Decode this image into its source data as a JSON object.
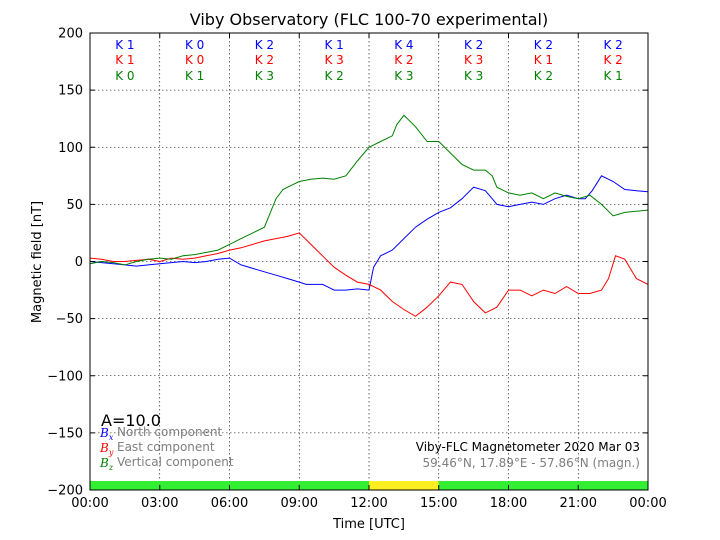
{
  "chart_data": {
    "type": "line",
    "title": "Viby Observatory (FLC 100-70 experimental)",
    "xlabel": "Time [UTC]",
    "ylabel": "Magnetic field [nT]",
    "xlim": [
      0,
      24
    ],
    "ylim": [
      -200,
      200
    ],
    "x_ticks": [
      0,
      3,
      6,
      9,
      12,
      15,
      18,
      21,
      24
    ],
    "x_tick_labels": [
      "00:00",
      "03:00",
      "06:00",
      "09:00",
      "12:00",
      "15:00",
      "18:00",
      "21:00",
      "00:00"
    ],
    "y_ticks": [
      200,
      150,
      100,
      50,
      0,
      -50,
      -100,
      -150,
      -200
    ],
    "y_tick_labels": [
      "200",
      "150",
      "100",
      "50",
      "0",
      "−50",
      "−100",
      "−150",
      "−200"
    ],
    "grid": true,
    "activity_index": "A=10.0",
    "k_indices": [
      {
        "name": "K",
        "color": "#0000ff",
        "values": [
          "K 1",
          "K 0",
          "K 2",
          "K 1",
          "K 4",
          "K 2",
          "K 2",
          "K 2"
        ]
      },
      {
        "name": "K",
        "color": "#ff0000",
        "values": [
          "K 1",
          "K 0",
          "K 2",
          "K 3",
          "K 2",
          "K 3",
          "K 1",
          "K 2"
        ]
      },
      {
        "name": "K",
        "color": "#008000",
        "values": [
          "K 0",
          "K 1",
          "K 3",
          "K 2",
          "K 3",
          "K 3",
          "K 2",
          "K 1"
        ]
      }
    ],
    "daylight_bar": [
      {
        "start": 0,
        "end": 12,
        "color": "#33ee33"
      },
      {
        "start": 12,
        "end": 15,
        "color": "#ffee22"
      },
      {
        "start": 15,
        "end": 24,
        "color": "#33ee33"
      }
    ],
    "series": [
      {
        "name": "North component",
        "symbol": "B",
        "subscript": "x",
        "color": "#0000ff",
        "x": [
          0,
          0.5,
          1,
          1.5,
          2,
          2.5,
          3,
          3.5,
          4,
          4.5,
          5,
          5.5,
          6,
          6.5,
          7,
          7.5,
          8,
          8.5,
          9,
          9.3,
          9.6,
          10,
          10.2,
          10.5,
          11,
          11.5,
          12,
          12.1,
          12.2,
          12.5,
          13,
          13.5,
          14,
          14.5,
          15,
          15.5,
          16,
          16.5,
          17,
          17.3,
          17.5,
          18,
          18.5,
          19,
          19.5,
          20,
          20.5,
          21,
          21.3,
          21.6,
          22,
          22.5,
          23,
          23.5,
          24
        ],
        "y": [
          0,
          -1,
          -2,
          -3,
          -4,
          -3,
          -2,
          -1,
          0,
          -1,
          0,
          2,
          3,
          -3,
          -6,
          -9,
          -12,
          -15,
          -18,
          -20,
          -20,
          -20,
          -22,
          -25,
          -25,
          -24,
          -25,
          -15,
          -5,
          5,
          10,
          20,
          30,
          37,
          43,
          47,
          55,
          65,
          62,
          55,
          50,
          48,
          50,
          52,
          50,
          55,
          58,
          55,
          55,
          62,
          75,
          70,
          63,
          62,
          61
        ]
      },
      {
        "name": "East component",
        "symbol": "B",
        "subscript": "y",
        "color": "#ff0000",
        "x": [
          0,
          0.5,
          1,
          1.5,
          2,
          2.5,
          3,
          3.5,
          4,
          4.5,
          5,
          5.5,
          6,
          6.5,
          7,
          7.5,
          8,
          8.5,
          9,
          9.5,
          10,
          10.5,
          11,
          11.5,
          12,
          12.5,
          13,
          13.5,
          14,
          14.5,
          15,
          15.5,
          16,
          16.5,
          17,
          17.5,
          18,
          18.5,
          19,
          19.5,
          20,
          20.5,
          21,
          21.5,
          22,
          22.3,
          22.6,
          23,
          23.5,
          24
        ],
        "y": [
          3,
          2,
          0,
          0,
          1,
          2,
          0,
          3,
          2,
          3,
          5,
          7,
          10,
          12,
          15,
          18,
          20,
          22,
          25,
          15,
          5,
          -5,
          -12,
          -18,
          -20,
          -25,
          -35,
          -42,
          -48,
          -40,
          -30,
          -18,
          -20,
          -35,
          -45,
          -40,
          -25,
          -25,
          -30,
          -25,
          -28,
          -22,
          -28,
          -28,
          -25,
          -15,
          5,
          2,
          -15,
          -20
        ]
      },
      {
        "name": "Vertical component",
        "symbol": "B",
        "subscript": "z",
        "color": "#008000",
        "x": [
          0,
          0.5,
          1,
          1.5,
          2,
          2.5,
          3,
          3.5,
          4,
          4.5,
          5,
          5.5,
          6,
          6.5,
          7,
          7.5,
          8,
          8.3,
          8.5,
          9,
          9.5,
          10,
          10.5,
          11,
          11.5,
          12,
          12.5,
          13,
          13.2,
          13.5,
          14,
          14.5,
          15,
          15.5,
          16,
          16.5,
          17,
          17.3,
          17.5,
          18,
          18.5,
          19,
          19.5,
          20,
          20.5,
          21,
          21.5,
          22,
          22.5,
          23,
          23.5,
          24
        ],
        "y": [
          -2,
          0,
          -1,
          -3,
          0,
          2,
          3,
          2,
          5,
          6,
          8,
          10,
          15,
          20,
          25,
          30,
          55,
          63,
          65,
          70,
          72,
          73,
          72,
          75,
          88,
          100,
          105,
          110,
          120,
          128,
          118,
          105,
          105,
          95,
          85,
          80,
          80,
          75,
          65,
          60,
          58,
          60,
          55,
          60,
          57,
          55,
          58,
          50,
          40,
          43,
          44,
          45
        ]
      }
    ],
    "info": {
      "line1": "Viby-FLC Magnetometer 2020 Mar 03",
      "line2": "59.46°N, 17.89°E - 57.86°N (magn.)"
    }
  }
}
